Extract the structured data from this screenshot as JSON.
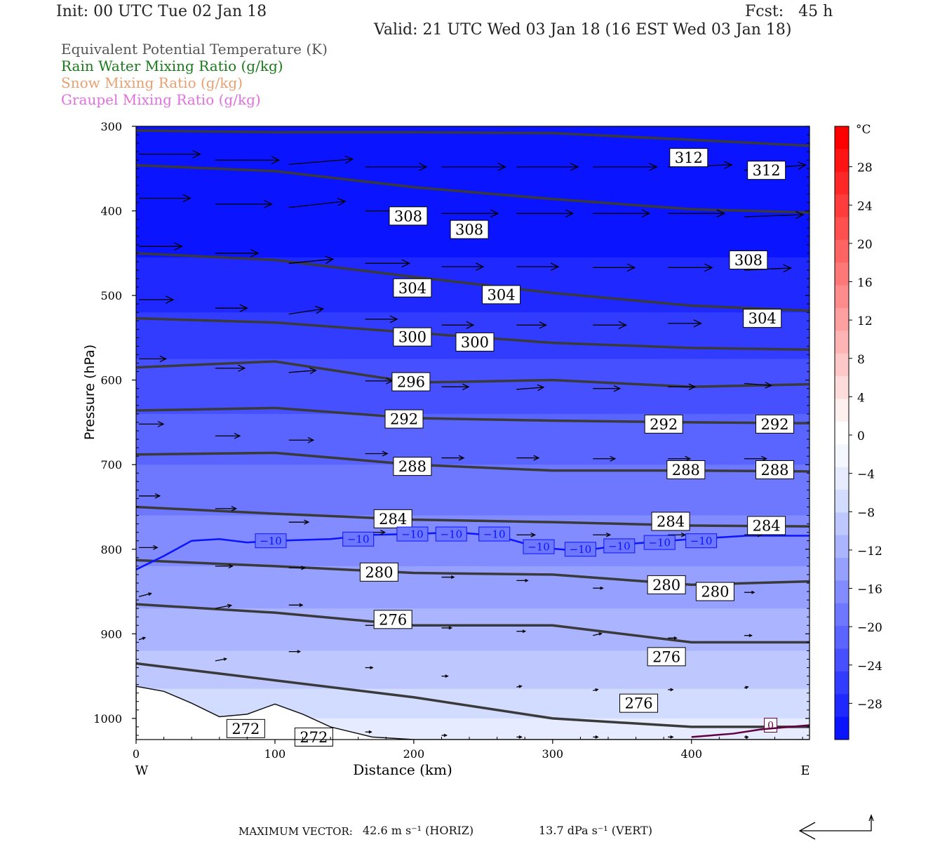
{
  "header": {
    "init": "Init: 00 UTC Tue 02 Jan 18",
    "fcst": "Fcst:   45 h",
    "valid": "Valid: 21 UTC Wed 03 Jan 18 (16 EST Wed 03 Jan 18)"
  },
  "legend": [
    {
      "label": "Equivalent Potential Temperature (K)",
      "color": "#555555"
    },
    {
      "label": "Rain Water Mixing Ratio (g/kg)",
      "color": "#1a7a1a"
    },
    {
      "label": "Snow Mixing Ratio (g/kg)",
      "color": "#e8a070"
    },
    {
      "label": "Graupel Mixing Ratio (g/kg)",
      "color": "#e070e0"
    }
  ],
  "footer": {
    "max_vector_label": "MAXIMUM VECTOR:",
    "horiz": "42.6 m s⁻¹ (HORIZ)",
    "vert": "13.7 dPa s⁻¹ (VERT)"
  },
  "chart_data": {
    "type": "contour",
    "xlabel": "Distance (km)",
    "ylabel": "Pressure (hPa)",
    "xlim": [
      0,
      485
    ],
    "ylim": [
      1025,
      300
    ],
    "x_ticks": [
      0,
      100,
      200,
      300,
      400
    ],
    "y_ticks": [
      300,
      400,
      500,
      600,
      700,
      800,
      900,
      1000
    ],
    "x_end_labels": {
      "left": "W",
      "right": "E"
    },
    "colorbar": {
      "unit": "°C",
      "ticks": [
        28,
        24,
        20,
        16,
        12,
        8,
        4,
        0,
        -4,
        -8,
        -12,
        -16,
        -20,
        -24,
        -28
      ],
      "range": [
        -32,
        32
      ],
      "colors": [
        "#0a14ff",
        "#1e28ff",
        "#323cff",
        "#4650ff",
        "#5a64ff",
        "#6e78ff",
        "#828cff",
        "#96a0ff",
        "#aab4ff",
        "#bec8ff",
        "#d2dcff",
        "#e6ebff",
        "#f5f7ff",
        "#ffffff",
        "#fff0f0",
        "#ffdcdc",
        "#ffc8c8",
        "#ffb4b4",
        "#ffa0a0",
        "#ff8c8c",
        "#ff7878",
        "#ff6464",
        "#ff5050",
        "#ff3c3c",
        "#ff2828",
        "#ff1414",
        "#ff0000"
      ]
    },
    "theta_e_contours": [
      {
        "value": 312,
        "points": [
          [
            0,
            305
          ],
          [
            100,
            307
          ],
          [
            200,
            307
          ],
          [
            300,
            308
          ],
          [
            400,
            316
          ],
          [
            485,
            323
          ]
        ]
      },
      {
        "value": 312,
        "points": [
          [
            0,
            346
          ],
          [
            100,
            353
          ],
          [
            200,
            372
          ],
          [
            300,
            386
          ],
          [
            400,
            398
          ],
          [
            485,
            402
          ]
        ]
      },
      {
        "value": 308,
        "points": [
          [
            0,
            450
          ],
          [
            100,
            458
          ],
          [
            200,
            478
          ],
          [
            300,
            497
          ],
          [
            400,
            512
          ],
          [
            485,
            518
          ]
        ]
      },
      {
        "value": 304,
        "points": [
          [
            0,
            527
          ],
          [
            100,
            532
          ],
          [
            200,
            544
          ],
          [
            300,
            556
          ],
          [
            400,
            562
          ],
          [
            485,
            564
          ]
        ]
      },
      {
        "value": 300,
        "points": [
          [
            0,
            585
          ],
          [
            100,
            578
          ],
          [
            200,
            603
          ],
          [
            300,
            600
          ],
          [
            400,
            608
          ],
          [
            485,
            605
          ]
        ]
      },
      {
        "value": 296,
        "points": [
          [
            0,
            636
          ],
          [
            100,
            633
          ],
          [
            200,
            645
          ],
          [
            300,
            648
          ],
          [
            400,
            650
          ],
          [
            485,
            651
          ]
        ]
      },
      {
        "value": 292,
        "points": [
          [
            0,
            688
          ],
          [
            100,
            686
          ],
          [
            200,
            700
          ],
          [
            300,
            707
          ],
          [
            400,
            707
          ],
          [
            485,
            708
          ]
        ]
      },
      {
        "value": 288,
        "points": [
          [
            0,
            750
          ],
          [
            100,
            758
          ],
          [
            200,
            765
          ],
          [
            300,
            768
          ],
          [
            400,
            772
          ],
          [
            485,
            773
          ]
        ]
      },
      {
        "value": 284,
        "points": [
          [
            0,
            813
          ],
          [
            100,
            820
          ],
          [
            200,
            828
          ],
          [
            300,
            830
          ],
          [
            400,
            842
          ],
          [
            485,
            838
          ]
        ]
      },
      {
        "value": 280,
        "points": [
          [
            0,
            865
          ],
          [
            100,
            875
          ],
          [
            200,
            890
          ],
          [
            300,
            890
          ],
          [
            400,
            910
          ],
          [
            485,
            910
          ]
        ]
      },
      {
        "value": 276,
        "points": [
          [
            0,
            935
          ],
          [
            100,
            955
          ],
          [
            200,
            975
          ],
          [
            300,
            1000
          ],
          [
            400,
            1010
          ],
          [
            485,
            1010
          ]
        ]
      }
    ],
    "contour_labels": [
      {
        "text": "312",
        "x": 398,
        "p": 337
      },
      {
        "text": "312",
        "x": 454,
        "p": 352
      },
      {
        "text": "308",
        "x": 196,
        "p": 406
      },
      {
        "text": "308",
        "x": 240,
        "p": 422
      },
      {
        "text": "308",
        "x": 441,
        "p": 458
      },
      {
        "text": "304",
        "x": 199,
        "p": 491
      },
      {
        "text": "304",
        "x": 263,
        "p": 499
      },
      {
        "text": "304",
        "x": 451,
        "p": 527
      },
      {
        "text": "300",
        "x": 199,
        "p": 549
      },
      {
        "text": "300",
        "x": 244,
        "p": 555
      },
      {
        "text": "296",
        "x": 198,
        "p": 602
      },
      {
        "text": "292",
        "x": 193,
        "p": 646
      },
      {
        "text": "292",
        "x": 380,
        "p": 652
      },
      {
        "text": "292",
        "x": 460,
        "p": 652
      },
      {
        "text": "288",
        "x": 199,
        "p": 702
      },
      {
        "text": "288",
        "x": 396,
        "p": 706
      },
      {
        "text": "288",
        "x": 460,
        "p": 706
      },
      {
        "text": "284",
        "x": 185,
        "p": 764
      },
      {
        "text": "284",
        "x": 385,
        "p": 767
      },
      {
        "text": "284",
        "x": 454,
        "p": 772
      },
      {
        "text": "280",
        "x": 175,
        "p": 827
      },
      {
        "text": "280",
        "x": 382,
        "p": 842
      },
      {
        "text": "280",
        "x": 417,
        "p": 850
      },
      {
        "text": "276",
        "x": 185,
        "p": 883
      },
      {
        "text": "276",
        "x": 382,
        "p": 927
      },
      {
        "text": "276",
        "x": 362,
        "p": 982
      },
      {
        "text": "272",
        "x": 79,
        "p": 1012
      },
      {
        "text": "272",
        "x": 128,
        "p": 1022
      }
    ],
    "isotherm_minus10": {
      "value": -10,
      "points": [
        [
          0,
          824
        ],
        [
          20,
          808
        ],
        [
          40,
          790
        ],
        [
          60,
          788
        ],
        [
          80,
          792
        ],
        [
          100,
          790
        ],
        [
          140,
          788
        ],
        [
          170,
          783
        ],
        [
          200,
          782
        ],
        [
          230,
          780
        ],
        [
          260,
          784
        ],
        [
          290,
          798
        ],
        [
          320,
          802
        ],
        [
          360,
          793
        ],
        [
          400,
          788
        ],
        [
          440,
          784
        ],
        [
          485,
          784
        ]
      ],
      "labels": [
        {
          "text": "−10",
          "x": 97,
          "p": 790
        },
        {
          "text": "−10",
          "x": 160,
          "p": 788
        },
        {
          "text": "−10",
          "x": 199,
          "p": 782
        },
        {
          "text": "−10",
          "x": 227,
          "p": 782
        },
        {
          "text": "−10",
          "x": 258,
          "p": 782
        },
        {
          "text": "−10",
          "x": 290,
          "p": 797
        },
        {
          "text": "−10",
          "x": 320,
          "p": 800
        },
        {
          "text": "−10",
          "x": 348,
          "p": 796
        },
        {
          "text": "−10",
          "x": 377,
          "p": 792
        },
        {
          "text": "−10",
          "x": 407,
          "p": 790
        }
      ]
    },
    "zero_label": {
      "text": "0",
      "x": 457,
      "p": 1008
    },
    "wind_vectors": [
      {
        "x": 0,
        "p": 333,
        "u": 50,
        "w": 0
      },
      {
        "x": 55,
        "p": 340,
        "u": 52,
        "w": 0
      },
      {
        "x": 108,
        "p": 345,
        "u": 52,
        "w": -5
      },
      {
        "x": 163,
        "p": 348,
        "u": 50,
        "w": 0
      },
      {
        "x": 218,
        "p": 348,
        "u": 52,
        "w": 0
      },
      {
        "x": 272,
        "p": 348,
        "u": 50,
        "w": 0
      },
      {
        "x": 327,
        "p": 348,
        "u": 52,
        "w": 0
      },
      {
        "x": 381,
        "p": 348,
        "u": 52,
        "w": -2
      },
      {
        "x": 436,
        "p": 352,
        "u": 50,
        "w": -5
      },
      {
        "x": 0,
        "p": 385,
        "u": 42,
        "w": 0
      },
      {
        "x": 55,
        "p": 392,
        "u": 46,
        "w": 0
      },
      {
        "x": 108,
        "p": 396,
        "u": 46,
        "w": -6
      },
      {
        "x": 163,
        "p": 400,
        "u": 46,
        "w": 0
      },
      {
        "x": 218,
        "p": 403,
        "u": 46,
        "w": 0
      },
      {
        "x": 272,
        "p": 403,
        "u": 46,
        "w": 0
      },
      {
        "x": 327,
        "p": 403,
        "u": 46,
        "w": 0
      },
      {
        "x": 381,
        "p": 403,
        "u": 46,
        "w": 0
      },
      {
        "x": 436,
        "p": 407,
        "u": 48,
        "w": -2
      },
      {
        "x": 0,
        "p": 442,
        "u": 35,
        "w": 0
      },
      {
        "x": 55,
        "p": 450,
        "u": 35,
        "w": 0
      },
      {
        "x": 108,
        "p": 462,
        "u": 36,
        "w": -4
      },
      {
        "x": 163,
        "p": 462,
        "u": 36,
        "w": 0
      },
      {
        "x": 218,
        "p": 466,
        "u": 34,
        "w": 0
      },
      {
        "x": 272,
        "p": 466,
        "u": 34,
        "w": 0
      },
      {
        "x": 327,
        "p": 467,
        "u": 34,
        "w": 0
      },
      {
        "x": 381,
        "p": 467,
        "u": 36,
        "w": 0
      },
      {
        "x": 436,
        "p": 470,
        "u": 38,
        "w": -2
      },
      {
        "x": 0,
        "p": 505,
        "u": 28,
        "w": 0
      },
      {
        "x": 55,
        "p": 515,
        "u": 26,
        "w": 0
      },
      {
        "x": 108,
        "p": 522,
        "u": 28,
        "w": -5
      },
      {
        "x": 163,
        "p": 528,
        "u": 26,
        "w": 0
      },
      {
        "x": 218,
        "p": 535,
        "u": 26,
        "w": 0
      },
      {
        "x": 272,
        "p": 535,
        "u": 24,
        "w": 0
      },
      {
        "x": 327,
        "p": 535,
        "u": 27,
        "w": 0
      },
      {
        "x": 381,
        "p": 533,
        "u": 27,
        "w": 0
      },
      {
        "x": 436,
        "p": 532,
        "u": 27,
        "w": 0
      },
      {
        "x": 0,
        "p": 575,
        "u": 22,
        "w": 0
      },
      {
        "x": 55,
        "p": 586,
        "u": 24,
        "w": 0
      },
      {
        "x": 108,
        "p": 591,
        "u": 22,
        "w": -2
      },
      {
        "x": 163,
        "p": 601,
        "u": 22,
        "w": 0
      },
      {
        "x": 218,
        "p": 608,
        "u": 22,
        "w": 0
      },
      {
        "x": 272,
        "p": 611,
        "u": 22,
        "w": -2
      },
      {
        "x": 327,
        "p": 610,
        "u": 22,
        "w": 0
      },
      {
        "x": 381,
        "p": 608,
        "u": 22,
        "w": 0
      },
      {
        "x": 436,
        "p": 604,
        "u": 22,
        "w": 2
      },
      {
        "x": 0,
        "p": 652,
        "u": 20,
        "w": 0
      },
      {
        "x": 55,
        "p": 666,
        "u": 20,
        "w": 0
      },
      {
        "x": 108,
        "p": 671,
        "u": 20,
        "w": 0
      },
      {
        "x": 163,
        "p": 687,
        "u": 18,
        "w": 0
      },
      {
        "x": 218,
        "p": 692,
        "u": 18,
        "w": 0
      },
      {
        "x": 272,
        "p": 692,
        "u": 18,
        "w": 0
      },
      {
        "x": 327,
        "p": 693,
        "u": 18,
        "w": 0
      },
      {
        "x": 381,
        "p": 693,
        "u": 18,
        "w": 0
      },
      {
        "x": 436,
        "p": 693,
        "u": 18,
        "w": 0
      },
      {
        "x": 0,
        "p": 737,
        "u": 17,
        "w": 0
      },
      {
        "x": 55,
        "p": 752,
        "u": 17,
        "w": 0
      },
      {
        "x": 108,
        "p": 768,
        "u": 16,
        "w": 0
      },
      {
        "x": 163,
        "p": 780,
        "u": 16,
        "w": 0
      },
      {
        "x": 218,
        "p": 782,
        "u": 15,
        "w": 0
      },
      {
        "x": 272,
        "p": 783,
        "u": 15,
        "w": 0
      },
      {
        "x": 327,
        "p": 783,
        "u": 14,
        "w": 0
      },
      {
        "x": 381,
        "p": 783,
        "u": 14,
        "w": 0
      },
      {
        "x": 436,
        "p": 783,
        "u": 14,
        "w": 0
      },
      {
        "x": 0,
        "p": 798,
        "u": 15,
        "w": 0
      },
      {
        "x": 55,
        "p": 820,
        "u": 14,
        "w": 0
      },
      {
        "x": 108,
        "p": 822,
        "u": 13,
        "w": 0
      },
      {
        "x": 163,
        "p": 828,
        "u": 11,
        "w": 0
      },
      {
        "x": 218,
        "p": 833,
        "u": 10,
        "w": 0
      },
      {
        "x": 272,
        "p": 837,
        "u": 9,
        "w": 0
      },
      {
        "x": 327,
        "p": 846,
        "u": 8,
        "w": 0
      },
      {
        "x": 381,
        "p": 850,
        "u": 8,
        "w": 0
      },
      {
        "x": 436,
        "p": 851,
        "u": 8,
        "w": 0
      },
      {
        "x": 0,
        "p": 856,
        "u": 10,
        "w": -3
      },
      {
        "x": 55,
        "p": 870,
        "u": 13,
        "w": -3
      },
      {
        "x": 108,
        "p": 866,
        "u": 11,
        "w": 0
      },
      {
        "x": 163,
        "p": 890,
        "u": 9,
        "w": 0
      },
      {
        "x": 218,
        "p": 893,
        "u": 8,
        "w": 0
      },
      {
        "x": 272,
        "p": 897,
        "u": 7,
        "w": 0
      },
      {
        "x": 327,
        "p": 902,
        "u": 7,
        "w": -2
      },
      {
        "x": 381,
        "p": 905,
        "u": 7,
        "w": 0
      },
      {
        "x": 436,
        "p": 902,
        "u": 6,
        "w": 0
      },
      {
        "x": 0,
        "p": 907,
        "u": 5,
        "w": -2
      },
      {
        "x": 55,
        "p": 932,
        "u": 9,
        "w": -2
      },
      {
        "x": 108,
        "p": 921,
        "u": 9,
        "w": 0
      },
      {
        "x": 163,
        "p": 940,
        "u": 6,
        "w": 0
      },
      {
        "x": 218,
        "p": 950,
        "u": 5,
        "w": 0
      },
      {
        "x": 272,
        "p": 963,
        "u": 4,
        "w": -1
      },
      {
        "x": 327,
        "p": 967,
        "u": 4,
        "w": -1
      },
      {
        "x": 381,
        "p": 966,
        "u": 4,
        "w": 0
      },
      {
        "x": 436,
        "p": 964,
        "u": 3,
        "w": -1
      },
      {
        "x": 163,
        "p": 1016,
        "u": 5,
        "w": 0
      },
      {
        "x": 218,
        "p": 1020,
        "u": 4,
        "w": 0
      },
      {
        "x": 272,
        "p": 1022,
        "u": 4,
        "w": 0
      },
      {
        "x": 327,
        "p": 1022,
        "u": 4,
        "w": 0
      },
      {
        "x": 381,
        "p": 1022,
        "u": 4,
        "w": 0
      },
      {
        "x": 436,
        "p": 1022,
        "u": 3,
        "w": 0
      }
    ]
  }
}
